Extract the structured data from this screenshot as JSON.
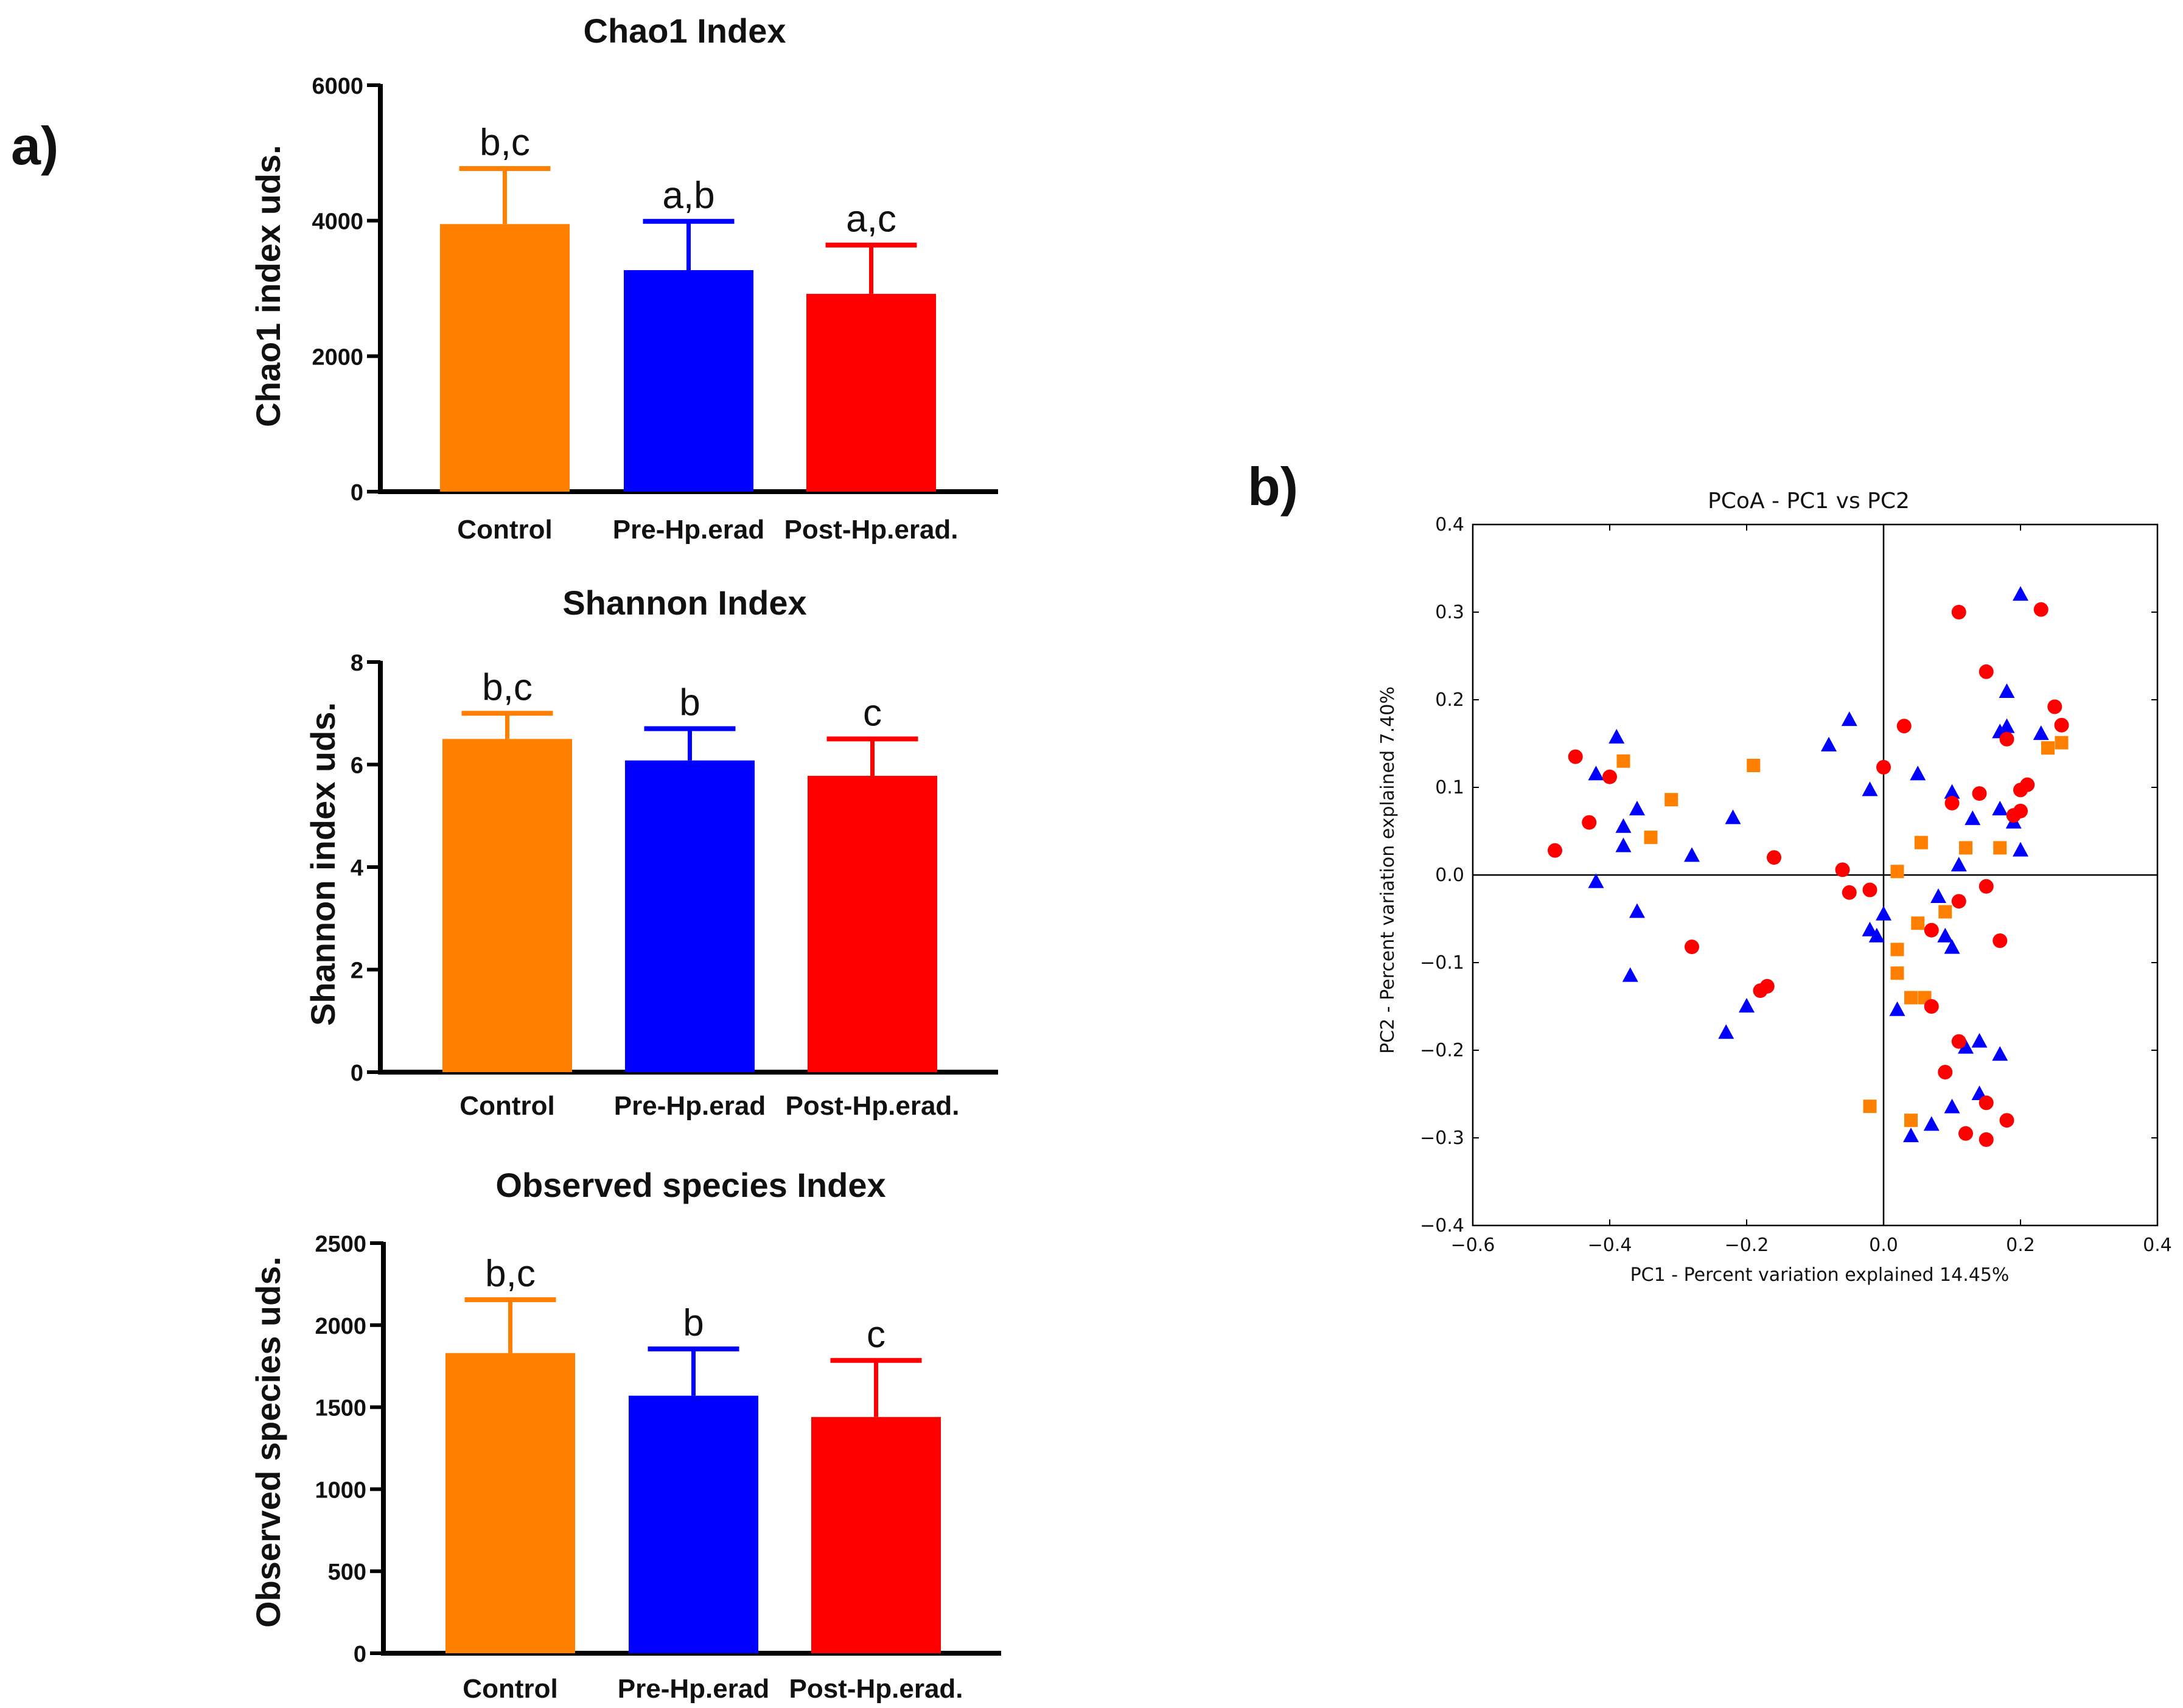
{
  "panel_labels": {
    "a": "a)",
    "b": "b)"
  },
  "colors": {
    "control": "#ff8000",
    "pre": "#0000ff",
    "post": "#ff0000"
  },
  "chart_data": [
    {
      "type": "bar",
      "id": "chao1",
      "title": "Chao1 Index",
      "ylabel": "Chao1 index uds.",
      "ylim": [
        0,
        6000
      ],
      "yticks": [
        "0",
        "2000",
        "4000",
        "6000"
      ],
      "ytick_values": [
        0,
        2000,
        4000,
        6000
      ],
      "categories": [
        "Control",
        "Pre-Hp.erad",
        "Post-Hp.erad."
      ],
      "values": [
        3950,
        3270,
        2920
      ],
      "errors": [
        820,
        720,
        720
      ],
      "letters": [
        "b,c",
        "a,b",
        "a,c"
      ]
    },
    {
      "type": "bar",
      "id": "shannon",
      "title": "Shannon Index",
      "ylabel": "Shannon index uds.",
      "ylim": [
        0,
        8
      ],
      "yticks": [
        "0",
        "2",
        "4",
        "6",
        "8"
      ],
      "ytick_values": [
        0,
        2,
        4,
        6,
        8
      ],
      "categories": [
        "Control",
        "Pre-Hp.erad",
        "Post-Hp.erad."
      ],
      "values": [
        6.5,
        6.08,
        5.78
      ],
      "errors": [
        0.5,
        0.62,
        0.72
      ],
      "letters": [
        "b,c",
        "b",
        "c"
      ]
    },
    {
      "type": "bar",
      "id": "observed",
      "title": "Observed species Index",
      "ylabel": "Observed species uds.",
      "ylim": [
        0,
        2500
      ],
      "yticks": [
        "0",
        "500",
        "1000",
        "1500",
        "2000",
        "2500"
      ],
      "ytick_values": [
        0,
        500,
        1000,
        1500,
        2000,
        2500
      ],
      "categories": [
        "Control",
        "Pre-Hp.erad",
        "Post-Hp.erad."
      ],
      "values": [
        1830,
        1570,
        1440
      ],
      "errors": [
        325,
        285,
        345
      ],
      "letters": [
        "b,c",
        "b",
        "c"
      ]
    },
    {
      "type": "scatter",
      "id": "pcoa",
      "title": "PCoA - PC1 vs PC2",
      "xlabel": "PC1 - Percent variation explained 14.45%",
      "ylabel": "PC2 - Percent variation explained 7.40%",
      "xlim": [
        -0.6,
        0.4
      ],
      "ylim": [
        -0.4,
        0.4
      ],
      "xticks": [
        "−0.6",
        "−0.4",
        "−0.2",
        "0.0",
        "0.2",
        "0.4"
      ],
      "xtick_values": [
        -0.6,
        -0.4,
        -0.2,
        0.0,
        0.2,
        0.4
      ],
      "yticks": [
        "−0.4",
        "−0.3",
        "−0.2",
        "−0.1",
        "0.0",
        "0.1",
        "0.2",
        "0.3",
        "0.4"
      ],
      "ytick_values": [
        -0.4,
        -0.3,
        -0.2,
        -0.1,
        0.0,
        0.1,
        0.2,
        0.3,
        0.4
      ],
      "series": [
        {
          "name": "Control",
          "marker": "square",
          "points": [
            [
              -0.38,
              0.13
            ],
            [
              -0.31,
              0.086
            ],
            [
              -0.19,
              0.125
            ],
            [
              -0.34,
              0.043
            ],
            [
              0.24,
              0.145
            ],
            [
              0.26,
              0.151
            ],
            [
              0.02,
              0.004
            ],
            [
              0.055,
              0.037
            ],
            [
              0.12,
              0.031
            ],
            [
              0.17,
              0.031
            ],
            [
              0.09,
              -0.042
            ],
            [
              0.05,
              -0.055
            ],
            [
              0.02,
              -0.085
            ],
            [
              0.02,
              -0.112
            ],
            [
              0.04,
              -0.14
            ],
            [
              0.06,
              -0.14
            ],
            [
              -0.02,
              -0.264
            ],
            [
              0.04,
              -0.28
            ]
          ]
        },
        {
          "name": "Pre-Hp.erad",
          "marker": "triangle",
          "points": [
            [
              -0.39,
              0.157
            ],
            [
              -0.42,
              0.115
            ],
            [
              -0.38,
              0.055
            ],
            [
              -0.36,
              0.075
            ],
            [
              -0.38,
              0.033
            ],
            [
              -0.28,
              0.022
            ],
            [
              -0.42,
              -0.008
            ],
            [
              -0.36,
              -0.042
            ],
            [
              -0.37,
              -0.115
            ],
            [
              -0.22,
              0.065
            ],
            [
              -0.2,
              -0.15
            ],
            [
              -0.23,
              -0.18
            ],
            [
              -0.08,
              0.148
            ],
            [
              -0.05,
              0.177
            ],
            [
              -0.02,
              0.097
            ],
            [
              0.05,
              0.115
            ],
            [
              0.1,
              0.094
            ],
            [
              0.11,
              0.011
            ],
            [
              0.13,
              0.064
            ],
            [
              0.17,
              0.075
            ],
            [
              0.17,
              0.163
            ],
            [
              0.18,
              0.169
            ],
            [
              0.18,
              0.209
            ],
            [
              0.2,
              0.32
            ],
            [
              0.19,
              0.06
            ],
            [
              0.2,
              0.028
            ],
            [
              0.23,
              0.161
            ],
            [
              0.08,
              -0.025
            ],
            [
              0.09,
              -0.07
            ],
            [
              0.1,
              -0.083
            ],
            [
              -0.02,
              -0.063
            ],
            [
              -0.01,
              -0.07
            ],
            [
              0.0,
              -0.045
            ],
            [
              0.02,
              -0.154
            ],
            [
              0.12,
              -0.197
            ],
            [
              0.14,
              -0.19
            ],
            [
              0.17,
              -0.205
            ],
            [
              0.1,
              -0.265
            ],
            [
              0.14,
              -0.25
            ],
            [
              0.07,
              -0.285
            ],
            [
              0.04,
              -0.298
            ]
          ]
        },
        {
          "name": "Post-Hp.erad.",
          "marker": "circle",
          "points": [
            [
              -0.48,
              0.028
            ],
            [
              -0.45,
              0.135
            ],
            [
              -0.43,
              0.06
            ],
            [
              -0.4,
              0.112
            ],
            [
              -0.28,
              -0.082
            ],
            [
              -0.18,
              -0.132
            ],
            [
              -0.17,
              -0.127
            ],
            [
              -0.16,
              0.02
            ],
            [
              -0.06,
              0.006
            ],
            [
              -0.02,
              -0.017
            ],
            [
              -0.05,
              -0.02
            ],
            [
              0.0,
              0.123
            ],
            [
              0.03,
              0.17
            ],
            [
              0.11,
              0.3
            ],
            [
              0.23,
              0.303
            ],
            [
              0.15,
              0.232
            ],
            [
              0.25,
              0.192
            ],
            [
              0.26,
              0.171
            ],
            [
              0.18,
              0.155
            ],
            [
              0.21,
              0.103
            ],
            [
              0.2,
              0.097
            ],
            [
              0.2,
              0.073
            ],
            [
              0.19,
              0.068
            ],
            [
              0.14,
              0.093
            ],
            [
              0.1,
              0.082
            ],
            [
              0.15,
              -0.013
            ],
            [
              0.11,
              -0.03
            ],
            [
              0.07,
              -0.063
            ],
            [
              0.07,
              -0.15
            ],
            [
              0.17,
              -0.075
            ],
            [
              0.11,
              -0.19
            ],
            [
              0.09,
              -0.225
            ],
            [
              0.15,
              -0.26
            ],
            [
              0.18,
              -0.28
            ],
            [
              0.12,
              -0.295
            ],
            [
              0.15,
              -0.302
            ]
          ]
        }
      ]
    }
  ]
}
